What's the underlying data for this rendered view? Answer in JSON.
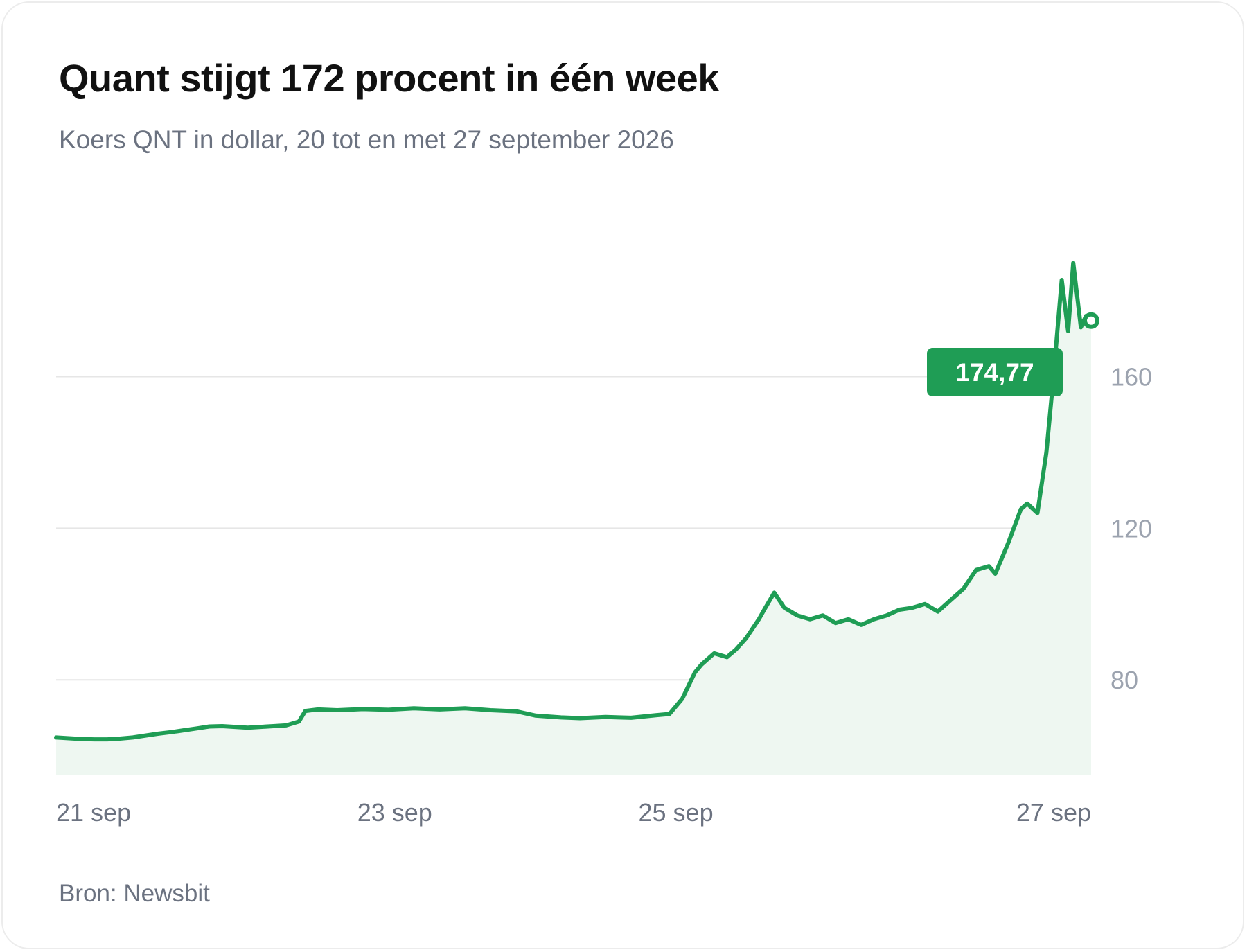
{
  "title": "Quant stijgt 172 procent in één week",
  "subtitle": "Koers QNT in dollar, 20 tot en met 27 september 2026",
  "source": "Bron: Newsbit",
  "colors": {
    "line": "#1f9d55",
    "area": "#eef7f1",
    "grid": "#e6e6e6",
    "y_tick_text": "#9ca3af",
    "x_tick_text": "#6b7280",
    "callout_bg": "#1f9d55",
    "callout_text": "#ffffff"
  },
  "chart_data": {
    "type": "area",
    "series": [
      {
        "values": [
          [
            0.0,
            64.8
          ],
          [
            0.1,
            64.6
          ],
          [
            0.2,
            64.4
          ],
          [
            0.3,
            64.3
          ],
          [
            0.4,
            64.3
          ],
          [
            0.5,
            64.5
          ],
          [
            0.6,
            64.8
          ],
          [
            0.7,
            65.3
          ],
          [
            0.8,
            65.8
          ],
          [
            0.9,
            66.2
          ],
          [
            1.0,
            66.7
          ],
          [
            1.1,
            67.2
          ],
          [
            1.2,
            67.7
          ],
          [
            1.3,
            67.8
          ],
          [
            1.4,
            67.6
          ],
          [
            1.5,
            67.4
          ],
          [
            1.6,
            67.6
          ],
          [
            1.7,
            67.8
          ],
          [
            1.8,
            68.0
          ],
          [
            1.9,
            69.0
          ],
          [
            1.95,
            71.8
          ],
          [
            2.05,
            72.2
          ],
          [
            2.2,
            72.0
          ],
          [
            2.4,
            72.3
          ],
          [
            2.6,
            72.1
          ],
          [
            2.8,
            72.5
          ],
          [
            3.0,
            72.2
          ],
          [
            3.2,
            72.5
          ],
          [
            3.4,
            72.0
          ],
          [
            3.6,
            71.7
          ],
          [
            3.75,
            70.6
          ],
          [
            3.95,
            70.1
          ],
          [
            4.1,
            69.9
          ],
          [
            4.3,
            70.2
          ],
          [
            4.5,
            70.0
          ],
          [
            4.7,
            70.7
          ],
          [
            4.8,
            71.0
          ],
          [
            4.9,
            75.0
          ],
          [
            5.0,
            82.0
          ],
          [
            5.05,
            84.0
          ],
          [
            5.15,
            87.0
          ],
          [
            5.25,
            86.0
          ],
          [
            5.32,
            88.0
          ],
          [
            5.4,
            91.0
          ],
          [
            5.5,
            96.0
          ],
          [
            5.55,
            99.0
          ],
          [
            5.62,
            103.0
          ],
          [
            5.7,
            99.0
          ],
          [
            5.8,
            97.0
          ],
          [
            5.9,
            96.0
          ],
          [
            6.0,
            97.0
          ],
          [
            6.1,
            95.0
          ],
          [
            6.2,
            96.0
          ],
          [
            6.3,
            94.5
          ],
          [
            6.4,
            96.0
          ],
          [
            6.5,
            97.0
          ],
          [
            6.6,
            98.5
          ],
          [
            6.7,
            99.0
          ],
          [
            6.8,
            100.0
          ],
          [
            6.9,
            98.0
          ],
          [
            7.0,
            101.0
          ],
          [
            7.1,
            104.0
          ],
          [
            7.2,
            109.0
          ],
          [
            7.3,
            110.0
          ],
          [
            7.35,
            108.0
          ],
          [
            7.45,
            116.0
          ],
          [
            7.55,
            125.0
          ],
          [
            7.6,
            126.5
          ],
          [
            7.68,
            124.0
          ],
          [
            7.75,
            140.0
          ],
          [
            7.8,
            158.0
          ],
          [
            7.87,
            185.5
          ],
          [
            7.92,
            172.0
          ],
          [
            7.96,
            190.0
          ],
          [
            8.02,
            173.0
          ],
          [
            8.06,
            176.0
          ],
          [
            8.1,
            174.77
          ]
        ]
      }
    ],
    "x_ticks": [
      "21 sep",
      "23 sep",
      "25 sep",
      "27 sep"
    ],
    "x_tick_positions": [
      0,
      2.65,
      4.85,
      7.55
    ],
    "x_range": [
      0,
      8.1
    ],
    "y_ticks": [
      "160",
      "120",
      "80"
    ],
    "y_tick_values": [
      160,
      120,
      80
    ],
    "y_range": [
      55,
      210
    ],
    "grid": true,
    "annotation": {
      "label": "174,77",
      "value": 174.77
    },
    "legend": "none"
  }
}
